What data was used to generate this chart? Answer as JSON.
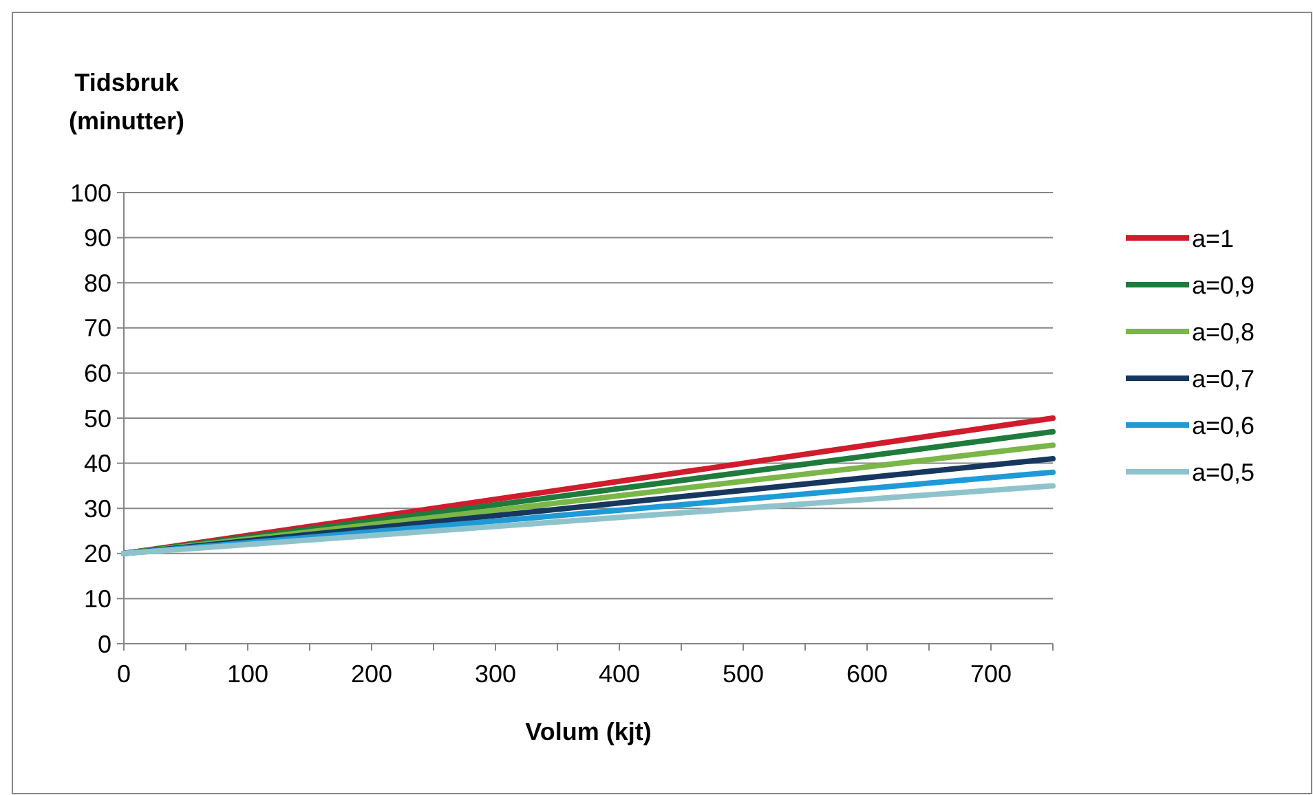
{
  "chart_data": {
    "type": "line",
    "xlabel": "Volum (kjt)",
    "ylabel": "Tidsbruk (minutter)",
    "x": [
      0,
      750
    ],
    "xlim": [
      0,
      750
    ],
    "xticks": [
      0,
      {
        "value": 50,
        "label": null
      },
      100,
      {
        "value": 150,
        "label": null
      },
      200,
      {
        "value": 250,
        "label": null
      },
      300,
      {
        "value": 350,
        "label": null
      },
      400,
      {
        "value": 450,
        "label": null
      },
      500,
      {
        "value": 550,
        "label": null
      },
      600,
      {
        "value": 650,
        "label": null
      },
      700,
      {
        "value": 750,
        "label": null
      }
    ],
    "ylim": [
      0,
      100
    ],
    "yticks": [
      0,
      10,
      20,
      30,
      40,
      50,
      60,
      70,
      80,
      90,
      100
    ],
    "grid": "y",
    "legend": "right",
    "marker": "none",
    "line_style": "solid",
    "series": [
      {
        "name": "a=1",
        "color": "#d01c2c",
        "values": [
          20,
          50
        ]
      },
      {
        "name": "a=0,9",
        "color": "#1e7b3c",
        "values": [
          20,
          47
        ]
      },
      {
        "name": "a=0,8",
        "color": "#7ab648",
        "values": [
          20,
          44
        ]
      },
      {
        "name": "a=0,7",
        "color": "#17375e",
        "values": [
          20,
          41
        ]
      },
      {
        "name": "a=0,6",
        "color": "#1e9ad6",
        "values": [
          20,
          38
        ]
      },
      {
        "name": "a=0,5",
        "color": "#8fc3cc",
        "values": [
          20,
          35
        ]
      }
    ]
  }
}
